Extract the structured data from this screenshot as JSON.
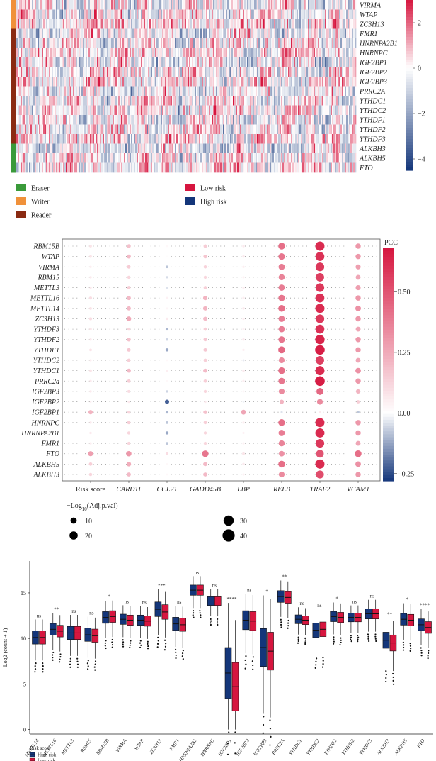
{
  "panel_a": {
    "genes": [
      "VIRMA",
      "WTAP",
      "ZC3H13",
      "FMR1",
      "HNRNPA2B1",
      "HNRNPC",
      "IGF2BP1",
      "IGF2BP2",
      "IGF2BP3",
      "PRRC2A",
      "YTHDC1",
      "YTHDC2",
      "YTHDF1",
      "YTHDF2",
      "YTHDF3",
      "ALKBH3",
      "ALKBH5",
      "FTO"
    ],
    "gene_group": [
      "Writer",
      "Writer",
      "Writer",
      "Reader",
      "Reader",
      "Reader",
      "Reader",
      "Reader",
      "Reader",
      "Reader",
      "Reader",
      "Reader",
      "Reader",
      "Reader",
      "Reader",
      "Eraser",
      "Eraser",
      "Eraser"
    ],
    "colorbar_ticks": [
      "2",
      "0",
      "−2",
      "−4"
    ],
    "colorbar_values": [
      2,
      0,
      -2,
      -4
    ],
    "color_min": -4.5,
    "color_max": 3,
    "legend_groups": [
      {
        "label": "Eraser",
        "color": "#3a9a3a"
      },
      {
        "label": "Writer",
        "color": "#f0913a"
      },
      {
        "label": "Reader",
        "color": "#8a2a12"
      }
    ],
    "legend_risk": [
      {
        "label": "Low risk",
        "color": "#d6163f"
      },
      {
        "label": "High risk",
        "color": "#14367a"
      }
    ]
  },
  "chart_data": [
    {
      "type": "heatmap",
      "title": "PCC",
      "rows": [
        "RBM15B",
        "WTAP",
        "VIRMA",
        "RBM15",
        "METTL3",
        "METTL16",
        "METTL14",
        "ZC3H13",
        "YTHDF3",
        "YTHDF2",
        "YTHDF1",
        "YTHDC2",
        "YTHDC1",
        "PRRC2a",
        "IGF2BP3",
        "IGF2BP2",
        "IGF2BP1",
        "HNRNPC",
        "HNRNPA2B1",
        "FMR1",
        "FTO",
        "ALKBH5",
        "ALKBH3"
      ],
      "columns": [
        "Risk score",
        "CARD11",
        "CCL21",
        "GADD45B",
        "LBP",
        "RELB",
        "TRAF2",
        "VCAM1"
      ],
      "pcc": [
        [
          0.08,
          0.18,
          0.02,
          0.15,
          0.06,
          0.42,
          0.62,
          0.3
        ],
        [
          0.08,
          0.2,
          0.01,
          0.17,
          0.06,
          0.4,
          0.6,
          0.3
        ],
        [
          0.05,
          0.15,
          -0.08,
          0.13,
          0.05,
          0.38,
          0.58,
          0.28
        ],
        [
          0.06,
          0.12,
          -0.05,
          0.12,
          0.04,
          0.36,
          0.56,
          0.26
        ],
        [
          0.06,
          0.14,
          -0.04,
          0.14,
          0.05,
          0.38,
          0.58,
          0.28
        ],
        [
          0.1,
          0.2,
          0.04,
          0.22,
          0.05,
          0.4,
          0.6,
          0.3
        ],
        [
          0.08,
          0.2,
          0.03,
          0.22,
          0.06,
          0.42,
          0.62,
          0.32
        ],
        [
          0.1,
          0.25,
          0.06,
          0.2,
          0.05,
          0.38,
          0.58,
          0.3
        ],
        [
          0.07,
          0.12,
          -0.1,
          0.14,
          0.04,
          0.38,
          0.6,
          0.26
        ],
        [
          0.06,
          0.18,
          -0.06,
          0.16,
          0.06,
          0.4,
          0.64,
          0.3
        ],
        [
          0.08,
          0.16,
          -0.12,
          0.16,
          0.05,
          0.44,
          0.66,
          0.3
        ],
        [
          0.05,
          0.14,
          0.02,
          0.14,
          -0.03,
          0.34,
          0.56,
          0.26
        ],
        [
          0.08,
          0.2,
          0.05,
          0.2,
          0.06,
          0.42,
          0.62,
          0.32
        ],
        [
          0.06,
          0.14,
          0.02,
          0.14,
          0.05,
          0.4,
          0.66,
          0.3
        ],
        [
          0.06,
          0.1,
          -0.06,
          0.12,
          0.03,
          0.34,
          0.44,
          0.22
        ],
        [
          0.04,
          0.06,
          -0.22,
          0.06,
          -0.02,
          0.22,
          0.34,
          0.14
        ],
        [
          0.22,
          0.12,
          -0.1,
          0.18,
          0.26,
          -0.04,
          0.06,
          -0.08
        ],
        [
          0.06,
          0.14,
          -0.08,
          0.14,
          0.05,
          0.42,
          0.62,
          0.3
        ],
        [
          0.06,
          0.12,
          -0.12,
          0.12,
          0.04,
          0.38,
          0.62,
          0.3
        ],
        [
          0.05,
          0.12,
          -0.08,
          0.12,
          0.04,
          0.36,
          0.58,
          0.26
        ],
        [
          0.28,
          0.3,
          0.1,
          0.4,
          0.08,
          0.32,
          0.5,
          0.42
        ],
        [
          0.14,
          0.24,
          0.02,
          0.2,
          0.06,
          0.42,
          0.62,
          0.32
        ],
        [
          0.12,
          0.2,
          0.02,
          0.2,
          0.04,
          0.34,
          0.52,
          0.3
        ]
      ],
      "colorbar_ticks": [
        "0.50",
        "0.25",
        "0.00",
        "−0.25"
      ],
      "colorbar_values": [
        0.5,
        0.25,
        0,
        -0.25
      ],
      "color_min": -0.28,
      "color_max": 0.68,
      "size_legend_title": "−Log10(Adj.p.val)",
      "size_legend": [
        "10",
        "20",
        "30",
        "40"
      ],
      "size_legend_values": [
        10,
        20,
        30,
        40
      ]
    },
    {
      "type": "box",
      "ylabel": "Log2 (count + 1)",
      "ylim": [
        -0.5,
        18.5
      ],
      "yticks": [
        "0",
        "5",
        "10",
        "15"
      ],
      "ytick_values": [
        0,
        5,
        10,
        15
      ],
      "legend_title": "Risk score",
      "categories": [
        "METTL14",
        "METTL16",
        "METTL3",
        "RBM15",
        "RBM15B",
        "VIRMA",
        "WTAP",
        "ZC3H13",
        "FMR1",
        "HNRNPA2B1",
        "HNRNPC",
        "IGF2BP1",
        "IGF2BP2",
        "IGF2BP3",
        "PRRC2A",
        "YTHDC1",
        "YTHDC2",
        "YTHDF1",
        "YTHDF2",
        "YTHDF3",
        "ALKBH3",
        "ALKBH5",
        "FTO"
      ],
      "significance": [
        "ns",
        "**",
        "ns",
        "ns",
        "*",
        "ns",
        "ns",
        "***",
        "ns",
        "ns",
        "ns",
        "****",
        "ns",
        "*",
        "**",
        "ns",
        "ns",
        "*",
        "ns",
        "ns",
        "**",
        "*",
        "****"
      ],
      "series": [
        {
          "name": "High risk",
          "color": "#14367a",
          "medians": [
            10.1,
            11.0,
            10.6,
            10.4,
            12.3,
            12.1,
            12.0,
            13.2,
            11.6,
            15.3,
            14.1,
            6.2,
            12.0,
            9.0,
            14.6,
            12.1,
            10.9,
            12.4,
            12.3,
            12.7,
            9.8,
            12.1,
            11.5
          ]
        },
        {
          "name": "Low risk",
          "color": "#d6163f",
          "medians": [
            10.1,
            10.8,
            10.6,
            10.3,
            12.4,
            12.0,
            11.9,
            12.9,
            11.5,
            15.3,
            14.1,
            4.7,
            11.9,
            8.6,
            14.5,
            12.0,
            11.0,
            12.3,
            12.3,
            12.7,
            9.5,
            12.0,
            11.2
          ]
        }
      ]
    }
  ]
}
